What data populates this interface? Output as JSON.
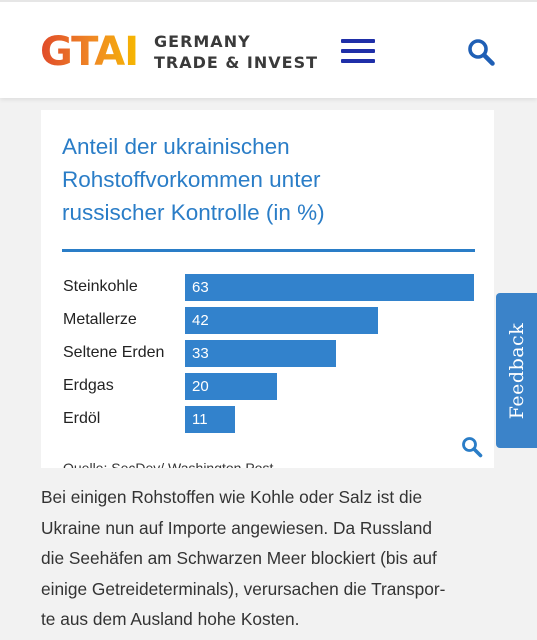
{
  "header": {
    "logo_text": "GTAI",
    "logo_line1": "GERMANY",
    "logo_line2": "TRADE & INVEST",
    "menu_icon": "hamburger-menu-icon",
    "search_icon": "search-icon",
    "colors": {
      "menu": "#1f2fa8",
      "search": "#1f5fb5",
      "logo_from": "#e04a2a",
      "logo_to": "#f6b800"
    }
  },
  "card": {
    "title_lines": [
      "Anteil der ukrainischen",
      "Rohstoffvorkommen unter",
      "russischer Kontrolle (in %)"
    ],
    "source_partial": "Quelle: SecDev/ Washington Post",
    "zoom_icon": "magnifier-icon"
  },
  "chart_data": {
    "type": "bar",
    "orientation": "horizontal",
    "title": "Anteil der ukrainischen Rohstoffvorkommen unter russischer Kontrolle (in %)",
    "categories": [
      "Steinkohle",
      "Metallerze",
      "Seltene Erden",
      "Erdgas",
      "Erdöl"
    ],
    "values": [
      63,
      42,
      33,
      20,
      11
    ],
    "xlim": [
      0,
      63
    ],
    "grid": false,
    "bar_color": "#3282cc",
    "title_color": "#2a7dc7"
  },
  "feedback": {
    "label": "Feedback",
    "color": "#3b83c9"
  },
  "body": {
    "lines": [
      "Bei einigen Rohstoffen wie Kohle oder Salz ist die",
      "Ukraine nun auf Importe angewiesen. Da Russland",
      "die Seehäfen am Schwarzen Meer blockiert (bis auf",
      "einige Getreideterminals), verursachen die Transpor-",
      "te aus dem Ausland hohe Kosten."
    ]
  }
}
